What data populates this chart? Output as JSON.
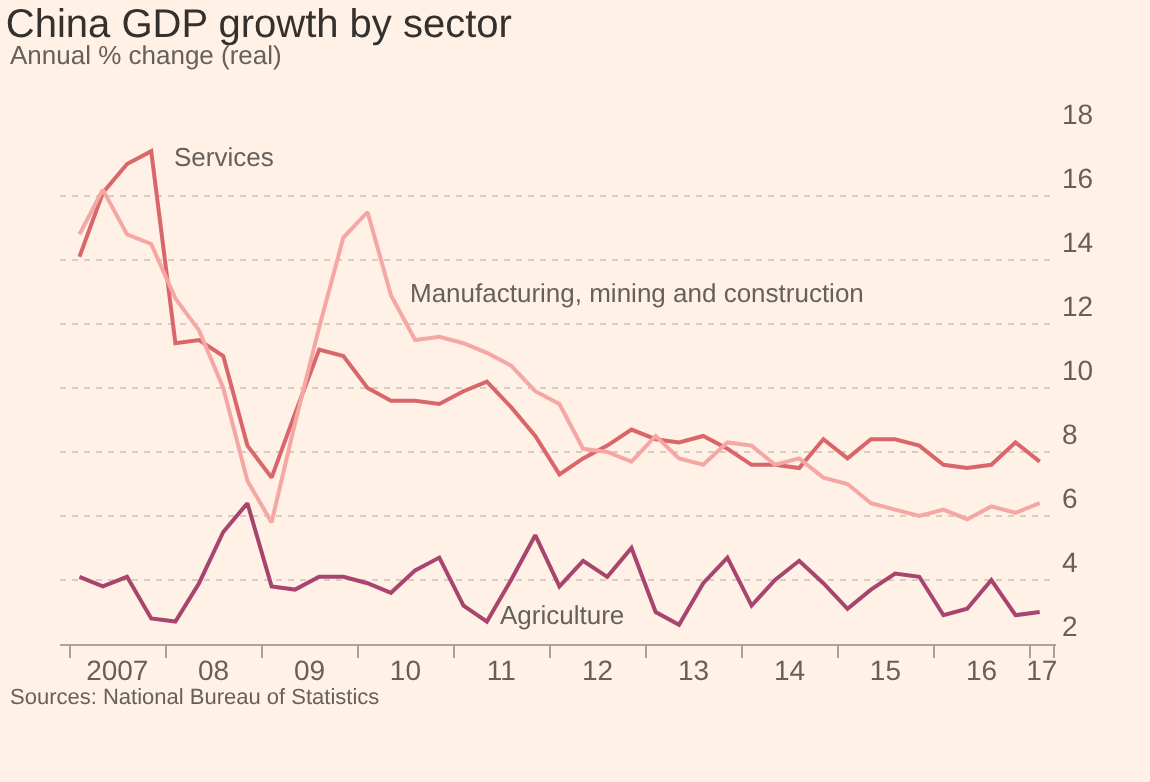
{
  "chart_data": {
    "type": "line",
    "title": "China GDP growth by sector",
    "subtitle": "Annual % change (real)",
    "annotations": [
      "Sources: National Bureau of Statistics"
    ],
    "x": [
      "2007-02-07",
      "2007-05-07",
      "2007-08-07",
      "2007-11-07",
      "2008-02-07",
      "2008-05-07",
      "2008-08-07",
      "2008-11-07",
      "2009-02-07",
      "2009-05-07",
      "2009-08-07",
      "2009-11-07",
      "2010-02-07",
      "2010-05-07",
      "2010-08-07",
      "2010-11-07",
      "2011-02-07",
      "2011-05-07",
      "2011-08-07",
      "2011-11-07",
      "2012-02-07",
      "2012-05-07",
      "2012-08-07",
      "2012-11-07",
      "2013-02-07",
      "2013-05-07",
      "2013-08-07",
      "2013-11-07",
      "2014-02-07",
      "2014-05-07",
      "2014-08-07",
      "2014-11-07",
      "2015-02-07",
      "2015-05-07",
      "2015-08-07",
      "2015-11-07",
      "2016-02-07",
      "2016-05-07",
      "2016-08-07",
      "2016-11-07",
      "2017-02-07"
    ],
    "series": [
      {
        "name": "Services",
        "color": "#d9666b",
        "values": [
          14.1,
          16.1,
          17.0,
          17.4,
          11.4,
          11.5,
          11.0,
          8.2,
          7.2,
          9.2,
          11.2,
          11.0,
          10.0,
          9.6,
          9.6,
          9.5,
          9.9,
          10.2,
          9.4,
          8.5,
          7.3,
          7.8,
          8.2,
          8.7,
          8.4,
          8.3,
          8.5,
          8.1,
          7.6,
          7.6,
          7.5,
          8.4,
          7.8,
          8.4,
          8.4,
          8.2,
          7.6,
          7.5,
          7.6,
          8.3,
          7.7
        ]
      },
      {
        "name": "Manufacturing, mining and construction",
        "color": "#f4a7a3",
        "values": [
          14.8,
          16.2,
          14.8,
          14.5,
          12.8,
          11.8,
          10.0,
          7.1,
          5.8,
          8.9,
          11.9,
          14.7,
          15.5,
          12.9,
          11.5,
          11.6,
          11.4,
          11.1,
          10.7,
          9.9,
          9.5,
          8.1,
          8.0,
          7.7,
          8.5,
          7.8,
          7.6,
          8.3,
          8.2,
          7.6,
          7.8,
          7.2,
          7.0,
          6.4,
          6.2,
          6.0,
          6.2,
          5.9,
          6.3,
          6.1,
          6.4
        ]
      },
      {
        "name": "Agriculture",
        "color": "#a7456f",
        "values": [
          4.1,
          3.8,
          4.1,
          2.8,
          2.7,
          3.9,
          5.5,
          6.4,
          3.8,
          3.7,
          4.1,
          4.1,
          3.9,
          3.6,
          4.3,
          4.7,
          3.2,
          2.7,
          4.0,
          5.4,
          3.8,
          4.6,
          4.1,
          5.0,
          3.0,
          2.6,
          3.9,
          4.7,
          3.2,
          4.0,
          4.6,
          3.9,
          3.1,
          3.7,
          4.2,
          4.1,
          2.9,
          3.1,
          4.0,
          2.9,
          3.0
        ]
      }
    ],
    "xlim": [
      "2006-11-25",
      "2017-04-10"
    ],
    "xticks": [
      {
        "value": "2007-01-01",
        "label": null
      },
      {
        "value": "2007-07-01",
        "label": "2007"
      },
      {
        "value": "2008-01-01",
        "label": null
      },
      {
        "value": "2008-07-01",
        "label": "08"
      },
      {
        "value": "2009-01-01",
        "label": null
      },
      {
        "value": "2009-07-01",
        "label": "09"
      },
      {
        "value": "2010-01-01",
        "label": null
      },
      {
        "value": "2010-07-01",
        "label": "10"
      },
      {
        "value": "2011-01-01",
        "label": null
      },
      {
        "value": "2011-07-01",
        "label": "11"
      },
      {
        "value": "2012-01-01",
        "label": null
      },
      {
        "value": "2012-07-01",
        "label": "12"
      },
      {
        "value": "2013-01-01",
        "label": null
      },
      {
        "value": "2013-07-01",
        "label": "13"
      },
      {
        "value": "2014-01-01",
        "label": null
      },
      {
        "value": "2014-07-01",
        "label": "14"
      },
      {
        "value": "2015-01-01",
        "label": null
      },
      {
        "value": "2015-07-01",
        "label": "15"
      },
      {
        "value": "2016-01-01",
        "label": null
      },
      {
        "value": "2016-07-01",
        "label": "16"
      },
      {
        "value": "2017-01-01",
        "label": null
      },
      {
        "value": "2017-02-15",
        "label": "17"
      },
      {
        "value": "2017-04-01",
        "label": null
      }
    ],
    "ylim": [
      2,
      18
    ],
    "yticks": [
      2,
      4,
      6,
      8,
      10,
      12,
      14,
      16,
      18
    ],
    "grid": "y",
    "legend": false,
    "marker": "none",
    "line_style": "solid"
  }
}
